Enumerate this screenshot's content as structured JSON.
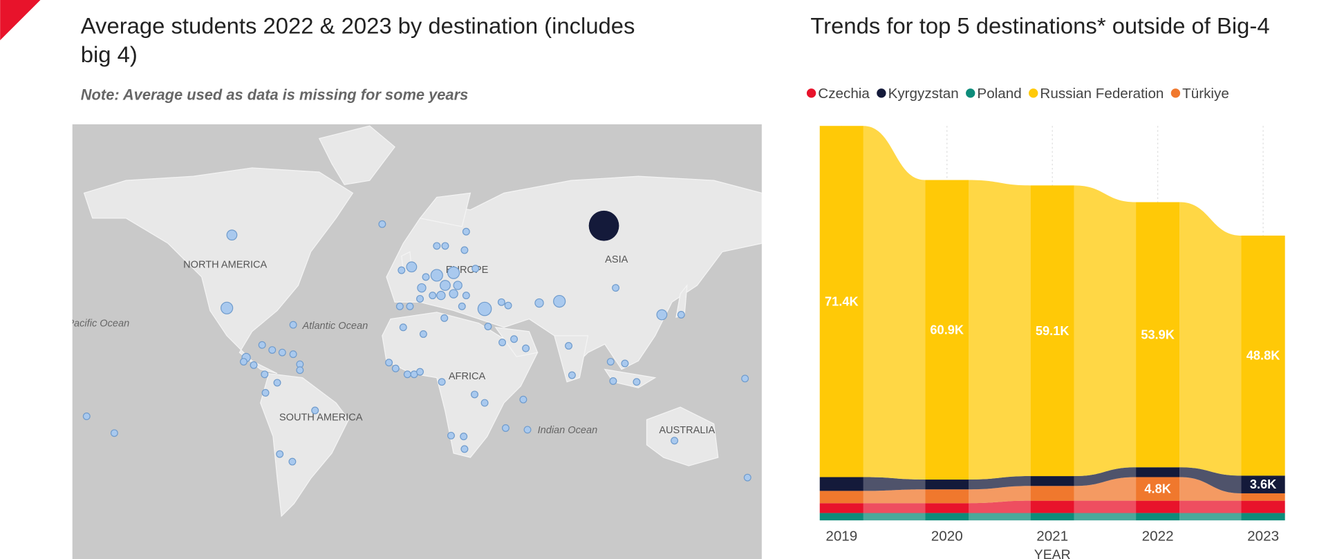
{
  "chart_data": [
    {
      "type": "map",
      "title": "Average students 2022 & 2023 by destination (includes big 4)",
      "subtitle": "Note: Average used as data is missing for some years",
      "labels": [
        "NORTH AMERICA",
        "EUROPE",
        "ASIA",
        "AFRICA",
        "SOUTH AMERICA",
        "AUSTRALIA"
      ],
      "ocean_labels": [
        "Pacific Ocean",
        "Atlantic Ocean",
        "Indian Ocean"
      ]
    },
    {
      "type": "ribbon",
      "title": "Trends for top 5 destinations* outside of Big-4",
      "x_label": "YEAR",
      "categories": [
        "2019",
        "2020",
        "2021",
        "2022",
        "2023"
      ],
      "series": [
        {
          "name": "Poland",
          "color": "#0d8c7a",
          "values": [
            1500,
            1500,
            1500,
            1500,
            1500
          ],
          "value_labels": [
            null,
            null,
            null,
            null,
            null
          ]
        },
        {
          "name": "Czechia",
          "color": "#e8132b",
          "values": [
            2000,
            2000,
            2500,
            2500,
            2500
          ],
          "value_labels": [
            null,
            null,
            null,
            null,
            null
          ]
        },
        {
          "name": "Türkiye",
          "color": "#f0782d",
          "values": [
            2500,
            2800,
            3000,
            4800,
            1500
          ],
          "value_labels": [
            null,
            null,
            null,
            "4.8K",
            null
          ]
        },
        {
          "name": "Kyrgyzstan",
          "color": "#141a3a",
          "values": [
            2800,
            2000,
            2000,
            2000,
            3600
          ],
          "value_labels": [
            null,
            null,
            null,
            null,
            "3.6K"
          ]
        },
        {
          "name": "Russian Federation",
          "color": "#ffc907",
          "values": [
            71400,
            60900,
            59100,
            53900,
            48800
          ],
          "value_labels": [
            "71.4K",
            "60.9K",
            "59.1K",
            "53.9K",
            "48.8K"
          ]
        }
      ],
      "legend_order": [
        1,
        3,
        0,
        4,
        2
      ]
    }
  ]
}
